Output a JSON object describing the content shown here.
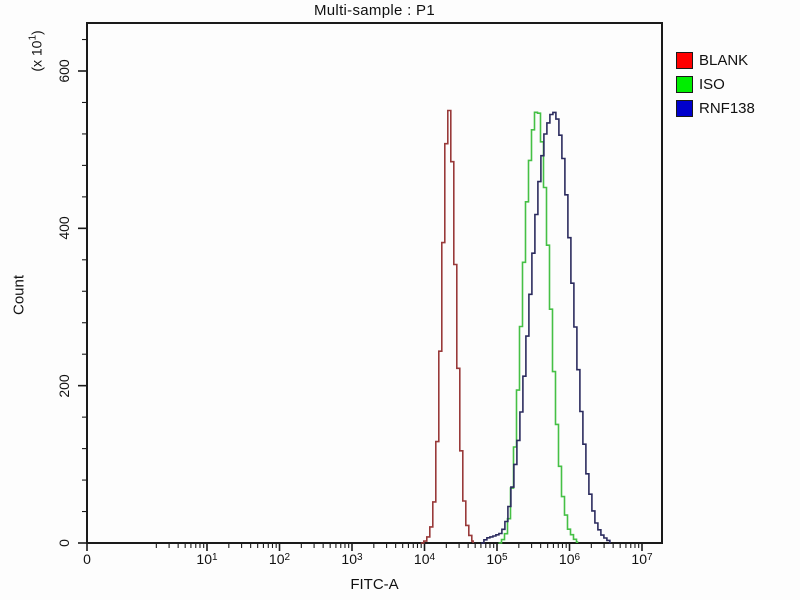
{
  "chart_data": {
    "type": "line",
    "subtype": "flow-cytometry-stepped-histogram",
    "title": "Multi-sample : P1",
    "xlabel": "FITC-A",
    "ylabel": "Count",
    "y_unit": {
      "prefix": "(x 10",
      "exp": "1",
      "suffix": ")"
    },
    "x_axis": {
      "scale": "log-with-zero",
      "ticks": [
        {
          "text": "0",
          "value": 0
        },
        {
          "base": "10",
          "exp": "1",
          "value": 10
        },
        {
          "base": "10",
          "exp": "2",
          "value": 100
        },
        {
          "base": "10",
          "exp": "3",
          "value": 1000
        },
        {
          "base": "10",
          "exp": "4",
          "value": 10000
        },
        {
          "base": "10",
          "exp": "5",
          "value": 100000
        },
        {
          "base": "10",
          "exp": "6",
          "value": 1000000
        },
        {
          "base": "10",
          "exp": "7",
          "value": 10000000
        }
      ]
    },
    "y_axis": {
      "tick_labels": [
        "0",
        "200",
        "400",
        "600"
      ],
      "tick_values": [
        0,
        200,
        400,
        600
      ],
      "minor_step": 40,
      "max": 660,
      "grid": false
    },
    "legend_position": "top-right",
    "series": [
      {
        "name": "BLANK",
        "line_color": "#993a3a",
        "legend_color": "#ff0000",
        "points": [
          [
            8900,
            0
          ],
          [
            10000,
            3
          ],
          [
            11500,
            12
          ],
          [
            12900,
            45
          ],
          [
            14100,
            110
          ],
          [
            15500,
            220
          ],
          [
            17000,
            350
          ],
          [
            18200,
            460
          ],
          [
            19500,
            530
          ],
          [
            20600,
            554
          ],
          [
            21900,
            540
          ],
          [
            23400,
            470
          ],
          [
            25100,
            370
          ],
          [
            27500,
            240
          ],
          [
            30200,
            130
          ],
          [
            33100,
            60
          ],
          [
            37200,
            22
          ],
          [
            41700,
            7
          ],
          [
            46800,
            0
          ]
        ]
      },
      {
        "name": "ISO",
        "line_color": "#45c045",
        "legend_color": "#00ee00",
        "points": [
          [
            105000,
            0
          ],
          [
            120000,
            6
          ],
          [
            135000,
            18
          ],
          [
            151000,
            60
          ],
          [
            170000,
            125
          ],
          [
            191000,
            215
          ],
          [
            219000,
            335
          ],
          [
            251000,
            445
          ],
          [
            288000,
            515
          ],
          [
            324000,
            546
          ],
          [
            347000,
            552
          ],
          [
            372000,
            543
          ],
          [
            407000,
            500
          ],
          [
            457000,
            425
          ],
          [
            513000,
            325
          ],
          [
            589000,
            210
          ],
          [
            676000,
            115
          ],
          [
            794000,
            50
          ],
          [
            933000,
            18
          ],
          [
            1100000,
            6
          ],
          [
            1290000,
            0
          ]
        ]
      },
      {
        "name": "RNF138",
        "line_color": "#2b2b5e",
        "legend_color": "#0000cc",
        "points": [
          [
            60000,
            0
          ],
          [
            69000,
            6
          ],
          [
            89000,
            9
          ],
          [
            112000,
            13
          ],
          [
            132000,
            30
          ],
          [
            151000,
            62
          ],
          [
            174000,
            105
          ],
          [
            200000,
            150
          ],
          [
            234000,
            225
          ],
          [
            275000,
            315
          ],
          [
            324000,
            405
          ],
          [
            380000,
            475
          ],
          [
            447000,
            522
          ],
          [
            525000,
            544
          ],
          [
            603000,
            548
          ],
          [
            676000,
            534
          ],
          [
            776000,
            495
          ],
          [
            891000,
            428
          ],
          [
            1020000,
            345
          ],
          [
            1200000,
            250
          ],
          [
            1410000,
            160
          ],
          [
            1660000,
            92
          ],
          [
            1950000,
            48
          ],
          [
            2290000,
            22
          ],
          [
            2750000,
            9
          ],
          [
            3310000,
            3
          ],
          [
            3630000,
            0
          ]
        ]
      }
    ]
  }
}
